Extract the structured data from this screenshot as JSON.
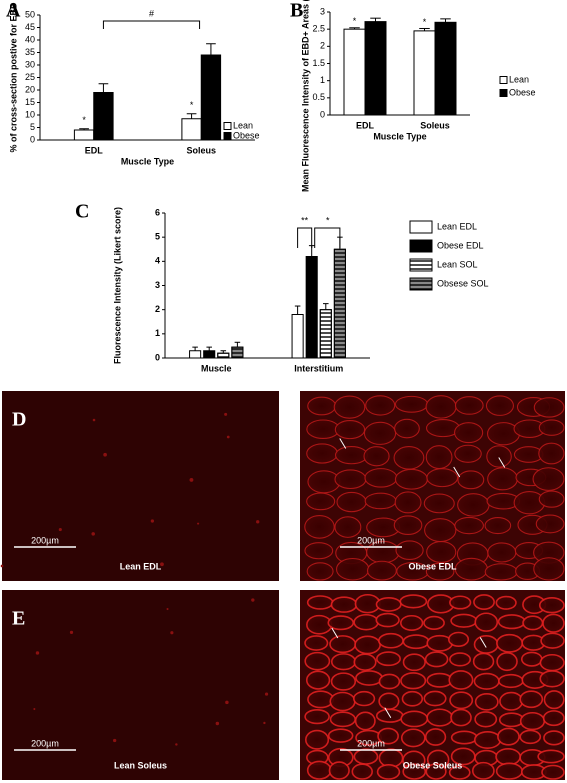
{
  "chart_data": [
    {
      "type": "bar",
      "panel_label": "A",
      "ylabel": "% of cross-section postive for EBD",
      "xlabel": "Muscle Type",
      "categories": [
        "EDL",
        "Soleus"
      ],
      "series": [
        {
          "name": "Lean",
          "color": "#ffffff",
          "values": [
            4,
            8.5
          ],
          "errors": [
            0.5,
            2
          ]
        },
        {
          "name": "Obese",
          "color": "#000000",
          "values": [
            19,
            34
          ],
          "errors": [
            3.5,
            4.5
          ]
        }
      ],
      "ylim": [
        0,
        50
      ],
      "yticks": [
        0,
        5,
        10,
        15,
        20,
        25,
        30,
        35,
        40,
        45,
        50
      ],
      "annotations": [
        "*",
        "*",
        "#"
      ],
      "legend": "right"
    },
    {
      "type": "bar",
      "panel_label": "B",
      "ylabel": "Mean Fluorescence Intensity of EBD+ Areas (arbitrary units)",
      "xlabel": "Muscle Type",
      "categories": [
        "EDL",
        "Soleus"
      ],
      "series": [
        {
          "name": "Lean",
          "color": "#ffffff",
          "values": [
            2.5,
            2.45
          ],
          "errors": [
            0.04,
            0.07
          ]
        },
        {
          "name": "Obese",
          "color": "#000000",
          "values": [
            2.72,
            2.7
          ],
          "errors": [
            0.1,
            0.1
          ]
        }
      ],
      "ylim": [
        0,
        3
      ],
      "yticks": [
        0,
        0.5,
        1,
        1.5,
        2,
        2.5,
        3
      ],
      "annotations": [
        "*",
        "*"
      ],
      "legend": "right"
    },
    {
      "type": "bar",
      "panel_label": "C",
      "ylabel": "Fluorescence Intensity (Likert score)",
      "categories": [
        "Muscle",
        "Interstitium"
      ],
      "series": [
        {
          "name": "Lean EDL",
          "color": "#ffffff",
          "hatch": false,
          "values": [
            0.3,
            1.8
          ],
          "errors": [
            0.15,
            0.35
          ]
        },
        {
          "name": "Obese EDL",
          "color": "#000000",
          "hatch": false,
          "values": [
            0.3,
            4.2
          ],
          "errors": [
            0.15,
            0.45
          ]
        },
        {
          "name": "Lean SOL",
          "color": "#ffffff",
          "hatch": true,
          "values": [
            0.2,
            2.0
          ],
          "errors": [
            0.1,
            0.25
          ]
        },
        {
          "name": "Obsese SOL",
          "color": "#888888",
          "hatch": true,
          "values": [
            0.45,
            4.5
          ],
          "errors": [
            0.2,
            0.5
          ]
        }
      ],
      "ylim": [
        0,
        6
      ],
      "yticks": [
        0,
        1,
        2,
        3,
        4,
        5,
        6
      ],
      "annotations": [
        "**",
        "*"
      ],
      "legend": "right"
    }
  ],
  "micrographs": [
    {
      "label": "D",
      "images": [
        {
          "caption": "Lean EDL",
          "scale_bar": "200µm"
        },
        {
          "caption": "Obese EDL",
          "scale_bar": "200µm"
        }
      ]
    },
    {
      "label": "E",
      "images": [
        {
          "caption": "Lean Soleus",
          "scale_bar": "200µm"
        },
        {
          "caption": "Obese Soleus",
          "scale_bar": "200µm"
        }
      ]
    }
  ]
}
